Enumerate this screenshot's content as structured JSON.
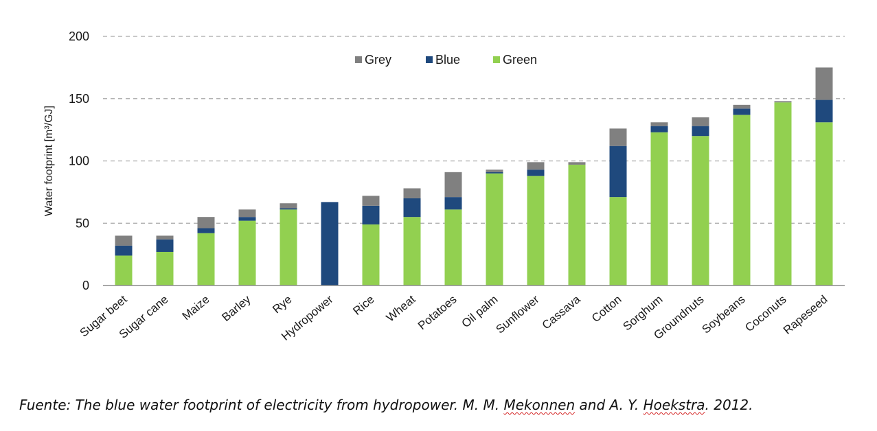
{
  "chart_data": {
    "type": "bar",
    "stacked": true,
    "categories": [
      "Sugar beet",
      "Sugar cane",
      "Maize",
      "Barley",
      "Rye",
      "Hydropower",
      "Rice",
      "Wheat",
      "Potatoes",
      "Oil palm",
      "Sunflower",
      "Cassava",
      "Cotton",
      "Sorghum",
      "Groundnuts",
      "Soybeans",
      "Coconuts",
      "Rapeseed"
    ],
    "series": [
      {
        "name": "Green",
        "color": "#92d050",
        "values": [
          24,
          27,
          42,
          52,
          61,
          0,
          49,
          55,
          61,
          90,
          88,
          97,
          71,
          123,
          120,
          137,
          147,
          131
        ]
      },
      {
        "name": "Blue",
        "color": "#1f497d",
        "values": [
          8,
          10,
          4,
          3,
          1,
          67,
          15,
          15,
          10,
          1,
          5,
          0,
          41,
          5,
          8,
          5,
          0,
          18
        ]
      },
      {
        "name": "Grey",
        "color": "#808080",
        "values": [
          8,
          3,
          9,
          6,
          4,
          0,
          8,
          8,
          20,
          2,
          6,
          2,
          14,
          3,
          7,
          3,
          1,
          26
        ]
      }
    ],
    "legend_order": [
      "Grey",
      "Blue",
      "Green"
    ],
    "legend_position": "top-center",
    "ylabel": "Water footprint [m³/GJ]",
    "ylim": [
      0,
      200
    ],
    "yticks": [
      0,
      50,
      100,
      150,
      200
    ],
    "grid": "horizontal dashed"
  },
  "caption": {
    "prefix": "Fuente: The blue water footprint of electricity from hydropower. M. M. ",
    "author1": "Mekonnen",
    "middle": " and A. Y. ",
    "author2": "Hoekstra",
    "suffix": ". 2012."
  }
}
